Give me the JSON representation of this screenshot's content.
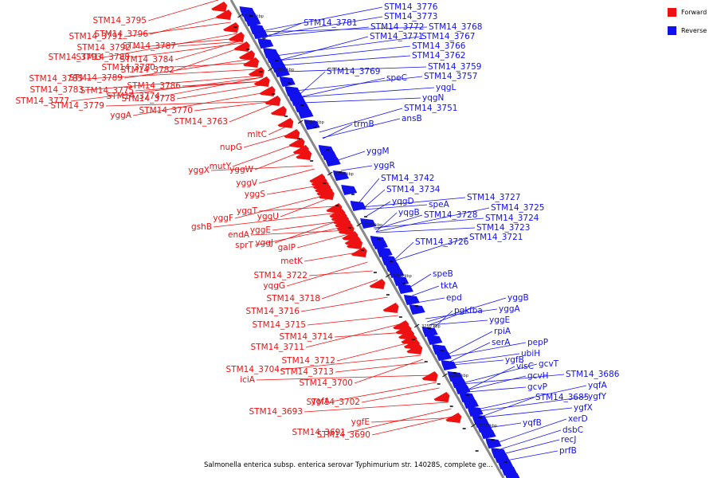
{
  "caption": "Salmonella enterica subsp. enterica serovar Typhimurium str. 14028S, complete ge...",
  "legend": [
    {
      "label": "Forward",
      "color": "#ee1111"
    },
    {
      "label": "Reverse",
      "color": "#1111ee"
    }
  ],
  "colors": {
    "forward": "#ee1111",
    "reverse": "#1111ee",
    "backbone": "#888888"
  },
  "ticks": [
    "3310 kbp",
    "3300 kbp",
    "3290 kbp",
    "3280 kbp",
    "3270 kbp",
    "3260 kbp",
    "3250 kbp",
    "3240 kbp",
    "3230 kbp"
  ],
  "forward_labels": [
    "STM14_3795",
    "STM14_3796",
    "STM14_3791",
    "STM14_3792",
    "STM14_3787",
    "STM14_3793",
    "STM14_3784",
    "STM14_3788",
    "STM14_3785",
    "STM14_3780",
    "STM14_3782",
    "STM14_3789",
    "STM14_3783",
    "STM14_3775",
    "STM14_3786",
    "STM14_3777",
    "STM14_3774",
    "STM14_3778",
    "STM14_3770",
    "STM14_3779",
    "yggA",
    "STM14_3763",
    "nupG",
    "mltC",
    "yggX",
    "mutY",
    "yggW",
    "yggV",
    "yggS",
    "yggT",
    "yggF",
    "yggU",
    "gshB",
    "yggE",
    "endA",
    "yggJ",
    "sprT",
    "galP",
    "metK",
    "STM14_3722",
    "yqgG",
    "STM14_3718",
    "STM14_3716",
    "STM14_3715",
    "STM14_3714",
    "STM14_3711",
    "STM14_3712",
    "STM14_3704",
    "STM14_3713",
    "iciA",
    "STM14_3700",
    "ygfA",
    "STM14_3702",
    "STM14_3693",
    "ygfE",
    "STM14_3691",
    "STM14_3690"
  ],
  "reverse_labels": [
    "STM14_3776",
    "STM14_3773",
    "STM14_3781",
    "STM14_3772",
    "STM14_3768",
    "STM14_3771",
    "STM14_3767",
    "STM14_3766",
    "STM14_3762",
    "STM14_3759",
    "STM14_3769",
    "speC",
    "STM14_3757",
    "yqgL",
    "yqgN",
    "STM14_3751",
    "ansB",
    "trmB",
    "yggM",
    "yggR",
    "STM14_3742",
    "STM14_3734",
    "yqgD",
    "STM14_3727",
    "speA",
    "STM14_3725",
    "yqgB",
    "STM14_3728",
    "STM14_3724",
    "STM14_3723",
    "STM14_3721",
    "STM14_3726",
    "speB",
    "tktA",
    "epd",
    "yggB",
    "pgk",
    "fba",
    "yggA",
    "yggE",
    "rpiA",
    "serA",
    "pepP",
    "ubiH",
    "ygfB",
    "visC",
    "gcvT",
    "gcvH",
    "STM14_3686",
    "gcvP",
    "yqfA",
    "STM14_3685",
    "ygfY",
    "ygfX",
    "yqfB",
    "xerD",
    "dsbC",
    "recJ",
    "prfB"
  ]
}
